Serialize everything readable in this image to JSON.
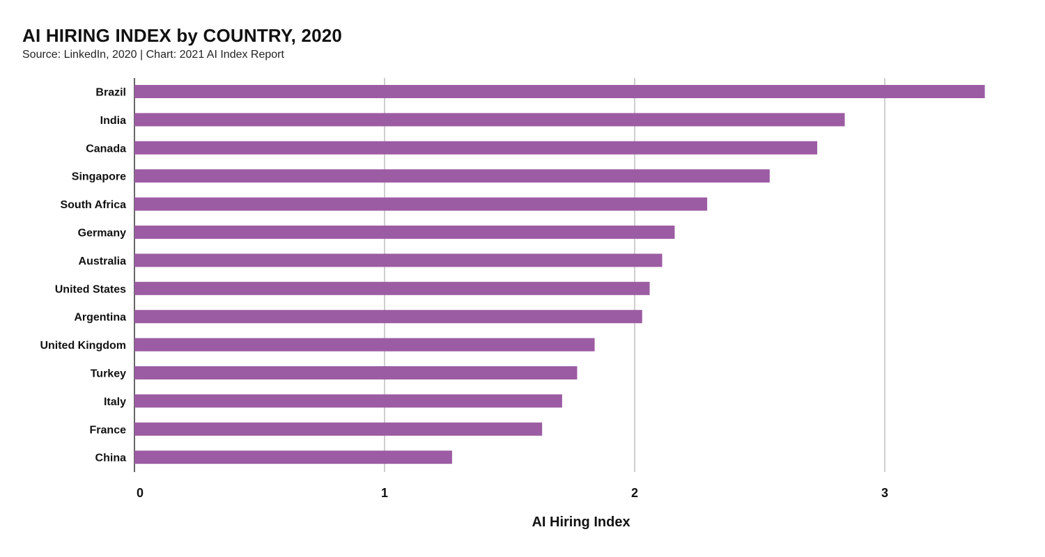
{
  "chart_data": {
    "type": "bar",
    "orientation": "horizontal",
    "title": "AI HIRING INDEX by COUNTRY, 2020",
    "subtitle": "Source: LinkedIn, 2020 | Chart: 2021 AI Index Report",
    "xlabel": "AI Hiring Index",
    "ylabel": "",
    "xlim": [
      0,
      3.4
    ],
    "xticks": [
      0,
      1,
      2,
      3
    ],
    "grid": true,
    "bar_color": "#9c5ca3",
    "categories": [
      "Brazil",
      "India",
      "Canada",
      "Singapore",
      "South Africa",
      "Germany",
      "Australia",
      "United States",
      "Argentina",
      "United Kingdom",
      "Turkey",
      "Italy",
      "France",
      "China"
    ],
    "values": [
      3.4,
      2.84,
      2.73,
      2.54,
      2.29,
      2.16,
      2.11,
      2.06,
      2.03,
      1.84,
      1.77,
      1.71,
      1.63,
      1.27
    ]
  }
}
